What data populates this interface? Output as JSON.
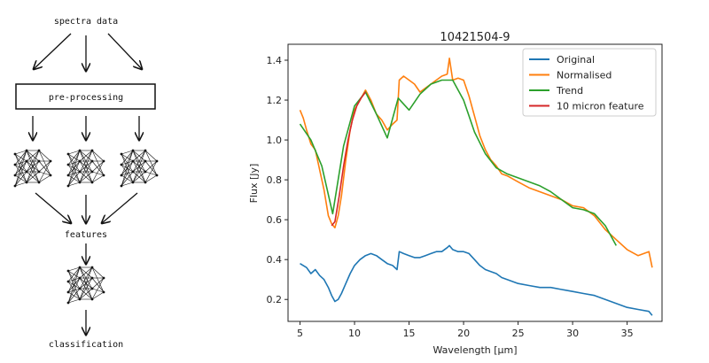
{
  "flowchart": {
    "top_label": "spectra data",
    "preprocessing_label": "pre-processing",
    "features_label": "features",
    "classification_label": "classification"
  },
  "chart_data": {
    "type": "line",
    "title": "10421504-9",
    "xlabel": "Wavelength [μm]",
    "ylabel": "Flux [Jy]",
    "xlim": [
      3.9,
      38.2
    ],
    "ylim": [
      0.09,
      1.48
    ],
    "xticks": [
      5,
      10,
      15,
      20,
      25,
      30,
      35
    ],
    "yticks": [
      0.2,
      0.4,
      0.6,
      0.8,
      1.0,
      1.2,
      1.4
    ],
    "grid": false,
    "legend_position": "top-right",
    "series": [
      {
        "name": "Original",
        "color": "#1f77b4",
        "x": [
          5.0,
          5.3,
          5.6,
          6.0,
          6.4,
          6.8,
          7.2,
          7.6,
          7.9,
          8.2,
          8.5,
          8.8,
          9.2,
          9.6,
          10.0,
          10.5,
          11.0,
          11.5,
          12.0,
          12.5,
          13.0,
          13.5,
          13.9,
          14.1,
          14.5,
          15.0,
          15.5,
          16.0,
          16.5,
          17.0,
          17.5,
          18.0,
          18.5,
          18.7,
          19.0,
          19.5,
          20.0,
          20.5,
          21.0,
          21.5,
          22.0,
          22.5,
          23.0,
          23.5,
          24.0,
          25.0,
          26.0,
          27.0,
          28.0,
          29.0,
          30.0,
          31.0,
          32.0,
          33.0,
          34.0,
          35.0,
          36.0,
          37.0,
          37.3
        ],
        "y": [
          0.38,
          0.37,
          0.36,
          0.33,
          0.35,
          0.32,
          0.3,
          0.26,
          0.22,
          0.19,
          0.2,
          0.23,
          0.28,
          0.33,
          0.37,
          0.4,
          0.42,
          0.43,
          0.42,
          0.4,
          0.38,
          0.37,
          0.35,
          0.44,
          0.43,
          0.42,
          0.41,
          0.41,
          0.42,
          0.43,
          0.44,
          0.44,
          0.46,
          0.47,
          0.45,
          0.44,
          0.44,
          0.43,
          0.4,
          0.37,
          0.35,
          0.34,
          0.33,
          0.31,
          0.3,
          0.28,
          0.27,
          0.26,
          0.26,
          0.25,
          0.24,
          0.23,
          0.22,
          0.2,
          0.18,
          0.16,
          0.15,
          0.14,
          0.12
        ]
      },
      {
        "name": "Normalised",
        "color": "#ff7f0e",
        "x": [
          5.0,
          5.3,
          5.6,
          6.0,
          6.4,
          6.8,
          7.2,
          7.6,
          7.9,
          8.2,
          8.5,
          8.8,
          9.2,
          9.6,
          10.0,
          10.5,
          11.0,
          11.5,
          12.0,
          12.5,
          13.0,
          13.5,
          13.9,
          14.1,
          14.5,
          15.0,
          15.5,
          16.0,
          16.5,
          17.0,
          17.5,
          18.0,
          18.5,
          18.7,
          19.0,
          19.5,
          20.0,
          20.5,
          21.0,
          21.5,
          22.0,
          22.5,
          23.0,
          23.5,
          24.0,
          25.0,
          26.0,
          27.0,
          28.0,
          29.0,
          30.0,
          31.0,
          32.0,
          33.0,
          34.0,
          35.0,
          36.0,
          37.0,
          37.3
        ],
        "y": [
          1.15,
          1.11,
          1.05,
          0.98,
          0.95,
          0.85,
          0.75,
          0.62,
          0.58,
          0.56,
          0.62,
          0.72,
          0.9,
          1.05,
          1.15,
          1.2,
          1.25,
          1.2,
          1.13,
          1.1,
          1.05,
          1.08,
          1.1,
          1.3,
          1.32,
          1.3,
          1.28,
          1.24,
          1.26,
          1.28,
          1.3,
          1.32,
          1.33,
          1.41,
          1.3,
          1.31,
          1.3,
          1.22,
          1.12,
          1.02,
          0.95,
          0.9,
          0.87,
          0.83,
          0.82,
          0.79,
          0.76,
          0.74,
          0.72,
          0.7,
          0.67,
          0.66,
          0.62,
          0.55,
          0.5,
          0.45,
          0.42,
          0.44,
          0.36
        ]
      },
      {
        "name": "Trend",
        "color": "#2ca02c",
        "x": [
          5.0,
          6.0,
          7.0,
          8.0,
          9.0,
          10.0,
          11.0,
          12.0,
          13.0,
          14.0,
          15.0,
          16.0,
          17.0,
          18.0,
          19.0,
          20.0,
          21.0,
          22.0,
          23.0,
          24.0,
          25.0,
          26.0,
          27.0,
          28.0,
          29.0,
          30.0,
          31.0,
          32.0,
          33.0,
          34.0
        ],
        "y": [
          1.08,
          1.0,
          0.87,
          0.63,
          0.97,
          1.17,
          1.24,
          1.13,
          1.01,
          1.21,
          1.15,
          1.23,
          1.28,
          1.3,
          1.3,
          1.2,
          1.04,
          0.93,
          0.86,
          0.83,
          0.81,
          0.79,
          0.77,
          0.74,
          0.7,
          0.66,
          0.65,
          0.63,
          0.57,
          0.47
        ]
      },
      {
        "name": "10 micron feature",
        "color": "#d62728",
        "x": [
          7.9,
          8.2,
          8.6,
          9.0,
          9.4,
          9.8,
          10.2,
          10.6,
          11.0
        ],
        "y": [
          0.57,
          0.59,
          0.72,
          0.87,
          1.0,
          1.1,
          1.17,
          1.21,
          1.24
        ]
      }
    ]
  }
}
